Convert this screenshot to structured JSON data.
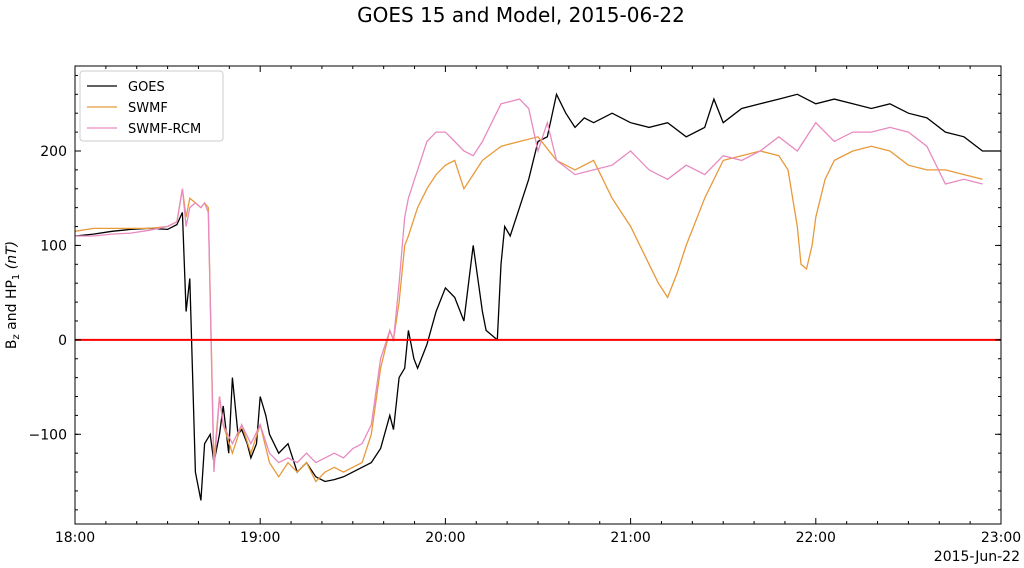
{
  "chart_data": {
    "type": "line",
    "title": "GOES 15 and Model, 2015-06-22",
    "ylabel_main": "B",
    "ylabel_sub1": "z",
    "ylabel_mid": " and HP",
    "ylabel_sub2": "1",
    "ylabel_unit": " (nT)",
    "x_date_label": "2015-Jun-22",
    "xlim": [
      18.0,
      23.0
    ],
    "ylim": [
      -195,
      290
    ],
    "x_ticks": [
      {
        "v": 18,
        "label": "18:00"
      },
      {
        "v": 19,
        "label": "19:00"
      },
      {
        "v": 20,
        "label": "20:00"
      },
      {
        "v": 21,
        "label": "21:00"
      },
      {
        "v": 22,
        "label": "22:00"
      },
      {
        "v": 23,
        "label": "23:00"
      }
    ],
    "y_ticks": [
      {
        "v": -100,
        "label": "−100"
      },
      {
        "v": 0,
        "label": "0"
      },
      {
        "v": 100,
        "label": "100"
      },
      {
        "v": 200,
        "label": "200"
      }
    ],
    "reference_line": {
      "y": 0,
      "color": "#ff0000"
    },
    "legend_position": "upper-left",
    "series": [
      {
        "name": "GOES",
        "color": "#000000",
        "x": [
          18.0,
          18.1,
          18.2,
          18.3,
          18.4,
          18.5,
          18.55,
          18.58,
          18.6,
          18.62,
          18.65,
          18.68,
          18.7,
          18.73,
          18.75,
          18.78,
          18.8,
          18.83,
          18.85,
          18.88,
          18.9,
          18.93,
          18.95,
          18.98,
          19.0,
          19.03,
          19.05,
          19.1,
          19.15,
          19.2,
          19.25,
          19.3,
          19.35,
          19.4,
          19.45,
          19.5,
          19.55,
          19.6,
          19.65,
          19.7,
          19.72,
          19.75,
          19.78,
          19.8,
          19.83,
          19.85,
          19.88,
          19.9,
          19.95,
          20.0,
          20.05,
          20.1,
          20.15,
          20.2,
          20.22,
          20.25,
          20.28,
          20.3,
          20.32,
          20.35,
          20.4,
          20.45,
          20.5,
          20.55,
          20.6,
          20.65,
          20.7,
          20.75,
          20.8,
          20.9,
          21.0,
          21.1,
          21.2,
          21.3,
          21.4,
          21.45,
          21.5,
          21.6,
          21.7,
          21.8,
          21.9,
          22.0,
          22.1,
          22.2,
          22.3,
          22.4,
          22.5,
          22.6,
          22.7,
          22.8,
          22.9,
          23.0
        ],
        "y": [
          110,
          112,
          115,
          117,
          118,
          117,
          122,
          135,
          30,
          65,
          -140,
          -170,
          -110,
          -100,
          -130,
          -100,
          -70,
          -120,
          -40,
          -100,
          -95,
          -110,
          -125,
          -110,
          -60,
          -80,
          -100,
          -120,
          -110,
          -140,
          -130,
          -145,
          -150,
          -148,
          -145,
          -140,
          -135,
          -130,
          -115,
          -80,
          -95,
          -40,
          -30,
          10,
          -20,
          -30,
          -15,
          -5,
          30,
          55,
          45,
          20,
          100,
          30,
          10,
          5,
          0,
          80,
          120,
          110,
          140,
          170,
          210,
          215,
          260,
          240,
          225,
          235,
          230,
          240,
          230,
          225,
          230,
          215,
          225,
          255,
          230,
          245,
          250,
          255,
          260,
          250,
          255,
          250,
          245,
          250,
          240,
          235,
          220,
          215,
          200,
          200
        ]
      },
      {
        "name": "SWMF",
        "color": "#e8993a",
        "x": [
          18.0,
          18.1,
          18.2,
          18.3,
          18.4,
          18.5,
          18.55,
          18.58,
          18.6,
          18.62,
          18.65,
          18.68,
          18.7,
          18.72,
          18.75,
          18.78,
          18.8,
          18.85,
          18.9,
          18.95,
          19.0,
          19.05,
          19.1,
          19.15,
          19.2,
          19.25,
          19.3,
          19.35,
          19.4,
          19.45,
          19.5,
          19.55,
          19.6,
          19.65,
          19.7,
          19.72,
          19.75,
          19.78,
          19.8,
          19.85,
          19.9,
          19.95,
          20.0,
          20.05,
          20.1,
          20.15,
          20.2,
          20.3,
          20.4,
          20.5,
          20.6,
          20.7,
          20.8,
          20.9,
          21.0,
          21.1,
          21.15,
          21.2,
          21.25,
          21.3,
          21.4,
          21.5,
          21.6,
          21.7,
          21.8,
          21.85,
          21.9,
          21.92,
          21.95,
          21.98,
          22.0,
          22.05,
          22.1,
          22.2,
          22.3,
          22.4,
          22.5,
          22.6,
          22.7,
          22.8,
          22.9
        ],
        "y": [
          115,
          118,
          118,
          118,
          118,
          120,
          125,
          160,
          130,
          150,
          145,
          140,
          145,
          140,
          -130,
          -60,
          -90,
          -120,
          -90,
          -120,
          -90,
          -130,
          -145,
          -130,
          -140,
          -130,
          -150,
          -140,
          -135,
          -140,
          -135,
          -130,
          -100,
          -30,
          10,
          0,
          40,
          100,
          110,
          140,
          160,
          175,
          185,
          190,
          160,
          175,
          190,
          205,
          210,
          215,
          190,
          180,
          190,
          150,
          120,
          80,
          60,
          45,
          70,
          100,
          150,
          190,
          195,
          200,
          195,
          180,
          120,
          80,
          75,
          100,
          130,
          170,
          190,
          200,
          205,
          200,
          185,
          180,
          180,
          175,
          170
        ]
      },
      {
        "name": "SWMF-RCM",
        "color": "#e88ac0",
        "x": [
          18.0,
          18.1,
          18.2,
          18.3,
          18.4,
          18.5,
          18.55,
          18.58,
          18.6,
          18.62,
          18.65,
          18.68,
          18.7,
          18.72,
          18.75,
          18.78,
          18.8,
          18.85,
          18.9,
          18.95,
          19.0,
          19.05,
          19.1,
          19.15,
          19.2,
          19.25,
          19.3,
          19.35,
          19.4,
          19.45,
          19.5,
          19.55,
          19.6,
          19.65,
          19.7,
          19.72,
          19.75,
          19.78,
          19.8,
          19.85,
          19.9,
          19.95,
          20.0,
          20.05,
          20.1,
          20.15,
          20.2,
          20.3,
          20.4,
          20.45,
          20.5,
          20.55,
          20.6,
          20.7,
          20.8,
          20.9,
          21.0,
          21.1,
          21.2,
          21.3,
          21.4,
          21.5,
          21.6,
          21.7,
          21.8,
          21.9,
          22.0,
          22.1,
          22.2,
          22.3,
          22.4,
          22.5,
          22.6,
          22.7,
          22.8,
          22.9
        ],
        "y": [
          110,
          110,
          112,
          113,
          116,
          120,
          125,
          160,
          120,
          140,
          145,
          140,
          145,
          135,
          -140,
          -60,
          -90,
          -110,
          -90,
          -110,
          -90,
          -120,
          -130,
          -125,
          -130,
          -120,
          -130,
          -125,
          -120,
          -125,
          -115,
          -110,
          -90,
          -20,
          10,
          0,
          60,
          130,
          150,
          180,
          210,
          220,
          220,
          210,
          200,
          195,
          210,
          250,
          255,
          245,
          200,
          230,
          190,
          175,
          180,
          185,
          200,
          180,
          170,
          185,
          175,
          195,
          190,
          200,
          215,
          200,
          230,
          210,
          220,
          220,
          225,
          220,
          205,
          165,
          170,
          165
        ]
      }
    ]
  }
}
